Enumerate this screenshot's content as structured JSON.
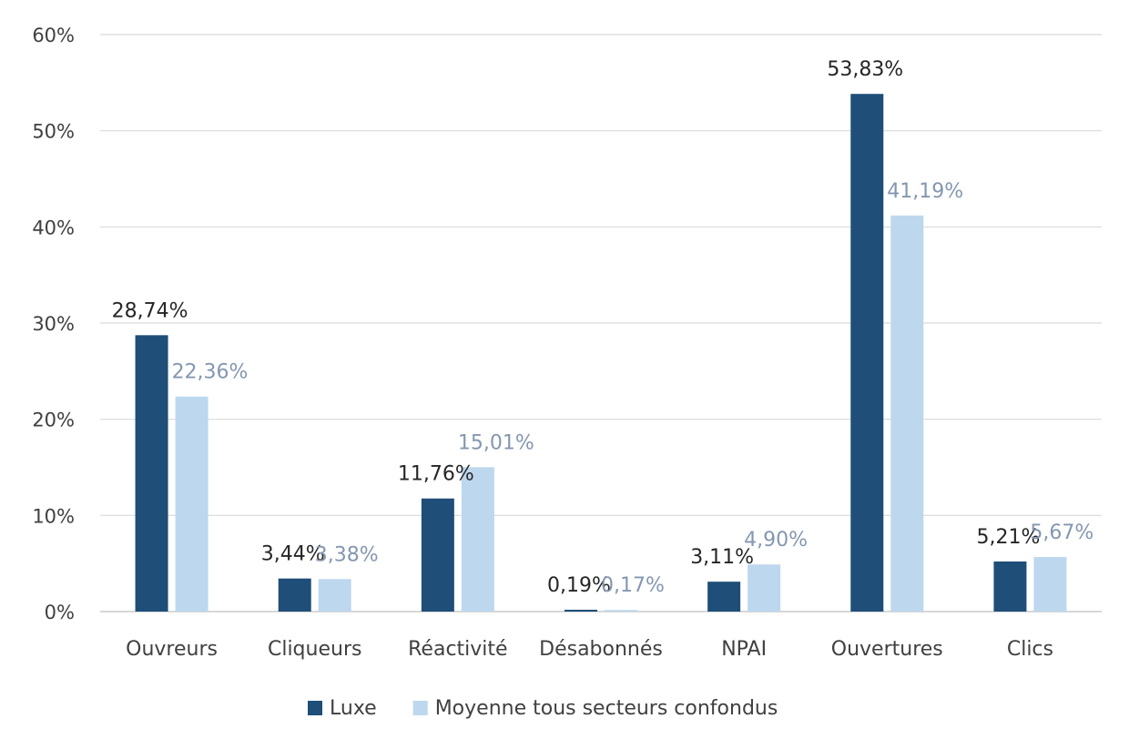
{
  "chart_data": {
    "type": "bar",
    "categories": [
      "Ouvreurs",
      "Cliqueurs",
      "Réactivité",
      "Désabonnés",
      "NPAI",
      "Ouvertures",
      "Clics"
    ],
    "series": [
      {
        "name": "Luxe",
        "values": [
          28.74,
          3.44,
          11.76,
          0.19,
          3.11,
          53.83,
          5.21
        ],
        "labels": [
          "28,74%",
          "3,44%",
          "11,76%",
          "0,19%",
          "3,11%",
          "53,83%",
          "5,21%"
        ],
        "color": "#1f4e79",
        "label_color": "#262626"
      },
      {
        "name": "Moyenne tous secteurs confondus",
        "values": [
          22.36,
          3.38,
          15.01,
          0.17,
          4.9,
          41.19,
          5.67
        ],
        "labels": [
          "22,36%",
          "3,38%",
          "15,01%",
          "0,17%",
          "4,90%",
          "41,19%",
          "5,67%"
        ],
        "color": "#bdd7ee",
        "label_color": "#8497b0"
      }
    ],
    "yticks": [
      "0%",
      "10%",
      "20%",
      "30%",
      "40%",
      "50%",
      "60%"
    ],
    "ylim": [
      0,
      60
    ],
    "grid": true,
    "legend": "bottom-center",
    "gridColor": "#d9d9d9"
  }
}
